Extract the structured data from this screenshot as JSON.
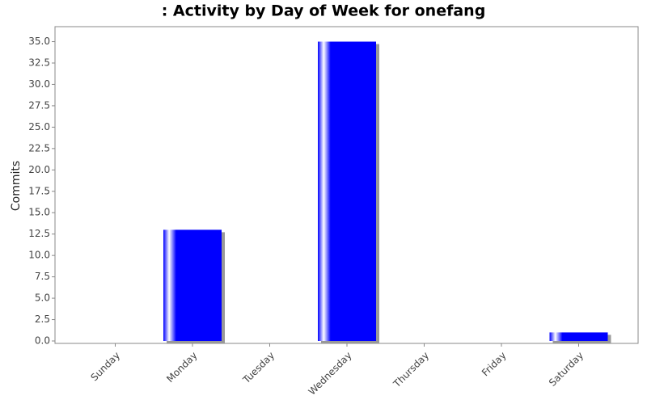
{
  "chart_data": {
    "type": "bar",
    "title": ": Activity by Day of Week for onefang",
    "y_label": "Commits",
    "categories": [
      "Sunday",
      "Monday",
      "Tuesday",
      "Wednesday",
      "Thursday",
      "Friday",
      "Saturday"
    ],
    "values": [
      0,
      13,
      0,
      35,
      0,
      0,
      1
    ],
    "color": "#0000ff",
    "ylim": [
      0,
      36.75
    ],
    "yticks": [
      {
        "value": 0,
        "label": "0.0"
      },
      {
        "value": 2.5,
        "label": "2.5"
      },
      {
        "value": 5,
        "label": "5.0"
      },
      {
        "value": 7.5,
        "label": "7.5"
      },
      {
        "value": 10,
        "label": "10.0"
      },
      {
        "value": 12.5,
        "label": "12.5"
      },
      {
        "value": 15,
        "label": "15.0"
      },
      {
        "value": 17.5,
        "label": "17.5"
      },
      {
        "value": 20,
        "label": "20.0"
      },
      {
        "value": 22.5,
        "label": "22.5"
      },
      {
        "value": 25,
        "label": "25.0"
      },
      {
        "value": 27.5,
        "label": "27.5"
      },
      {
        "value": 30,
        "label": "30.0"
      },
      {
        "value": 32.5,
        "label": "32.5"
      },
      {
        "value": 35,
        "label": "35.0"
      }
    ],
    "grid": false
  }
}
